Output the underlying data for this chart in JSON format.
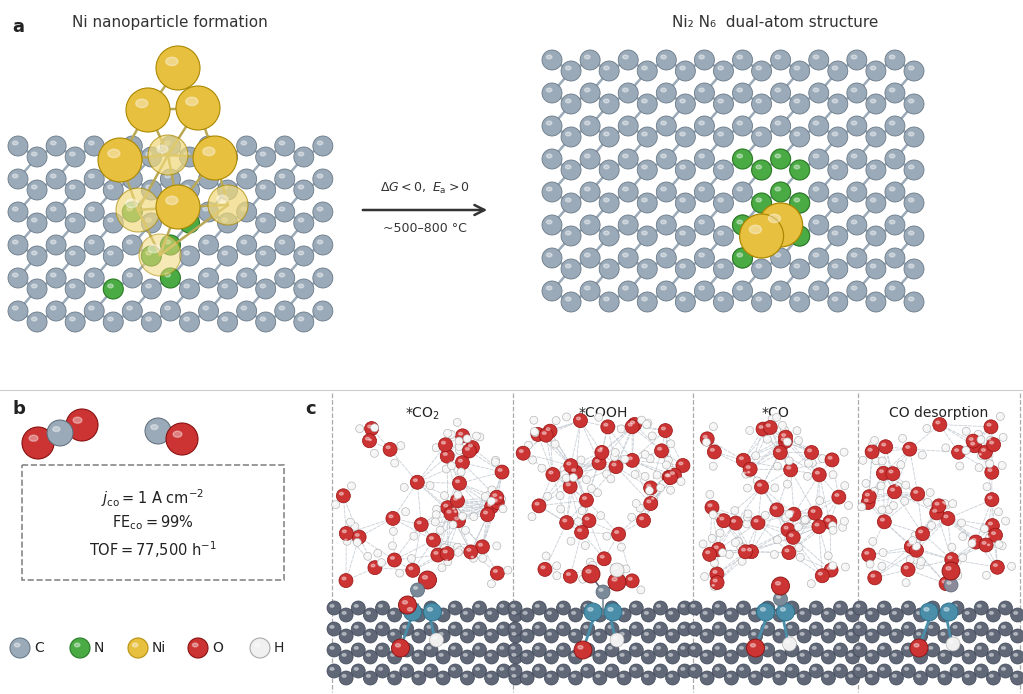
{
  "bg_color": "#ffffff",
  "title_a_left": "Ni nanoparticle formation",
  "title_a_right": "Ni₂ N₆  dual-atom structure",
  "arrow_text1": "ΔG < 0, Eₐ > 0",
  "arrow_text2": "~500–8 00 °C",
  "label_a": "a",
  "label_b": "b",
  "label_c": "c",
  "c_color": "#9baab8",
  "n_color": "#4aaa44",
  "ni_color": "#e8c040",
  "ni_color_pale": "#f0d878",
  "o_color": "#cc3333",
  "h_color": "#f5f5f5",
  "graphene_c_color": "#9baab8",
  "bond_color": "#8a9aaa",
  "ni_bond_color": "#b8a855",
  "legend_labels": [
    "C",
    "N",
    "Ni",
    "O",
    "H"
  ],
  "legend_colors": [
    "#9baab8",
    "#4aaa44",
    "#e8c040",
    "#cc3333",
    "#f0f0f0"
  ],
  "legend_edge_colors": [
    "#6a7a88",
    "#2a7a24",
    "#b89010",
    "#881111",
    "#aaaaaa"
  ]
}
